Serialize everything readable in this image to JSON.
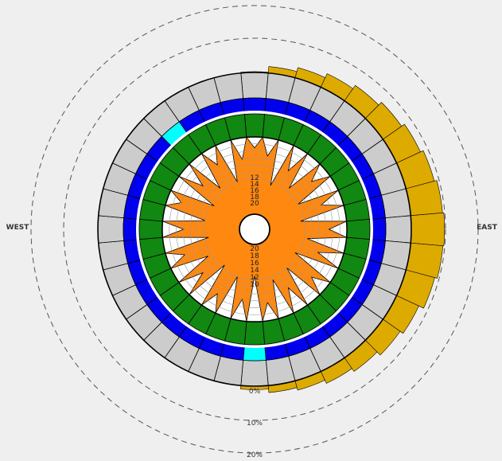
{
  "chart_data": {
    "type": "polar-composite",
    "directions": {
      "west": "WEST",
      "east": "EAST"
    },
    "percent_rings": {
      "labels": [
        "0%",
        "10%",
        "20%"
      ],
      "values": [
        0,
        10,
        20
      ]
    },
    "sectors": 36,
    "outer_bars": {
      "color": "#ddaa00",
      "values_percent": [
        0.2,
        1.5,
        2.4,
        3.4,
        4.3,
        5.2,
        6.0,
        6.7,
        7.3,
        7.6,
        7.4,
        6.8,
        5.6,
        4.8,
        3.8,
        3.0,
        2.2,
        1.6,
        0.8,
        0,
        0,
        0,
        0,
        0,
        0,
        0,
        0,
        0,
        0,
        0,
        0,
        0,
        0,
        0,
        0,
        0
      ]
    },
    "gray_ring": {
      "color": "#cccccc"
    },
    "blue_ring": {
      "color": "#0000ee",
      "highlight_color": "#00ffff",
      "highlight_sectors": [
        18,
        32
      ]
    },
    "green_ring": {
      "color": "#118811"
    },
    "inner_star": {
      "color": "#ff8811",
      "tick_labels_upper": [
        "12",
        "14",
        "16",
        "18",
        "20"
      ],
      "tick_labels_lower": [
        "20",
        "18",
        "16",
        "14",
        "12",
        "10"
      ],
      "ring_values": [
        10,
        12,
        14,
        16,
        18,
        20
      ],
      "values": [
        20,
        18,
        10,
        16,
        12,
        18,
        11,
        17,
        10,
        18,
        12,
        16,
        10,
        18,
        11,
        16,
        12,
        18,
        10,
        17,
        11,
        18,
        10,
        16,
        12,
        18,
        10,
        17,
        11,
        19,
        10,
        16,
        12,
        18,
        11,
        17
      ]
    }
  }
}
